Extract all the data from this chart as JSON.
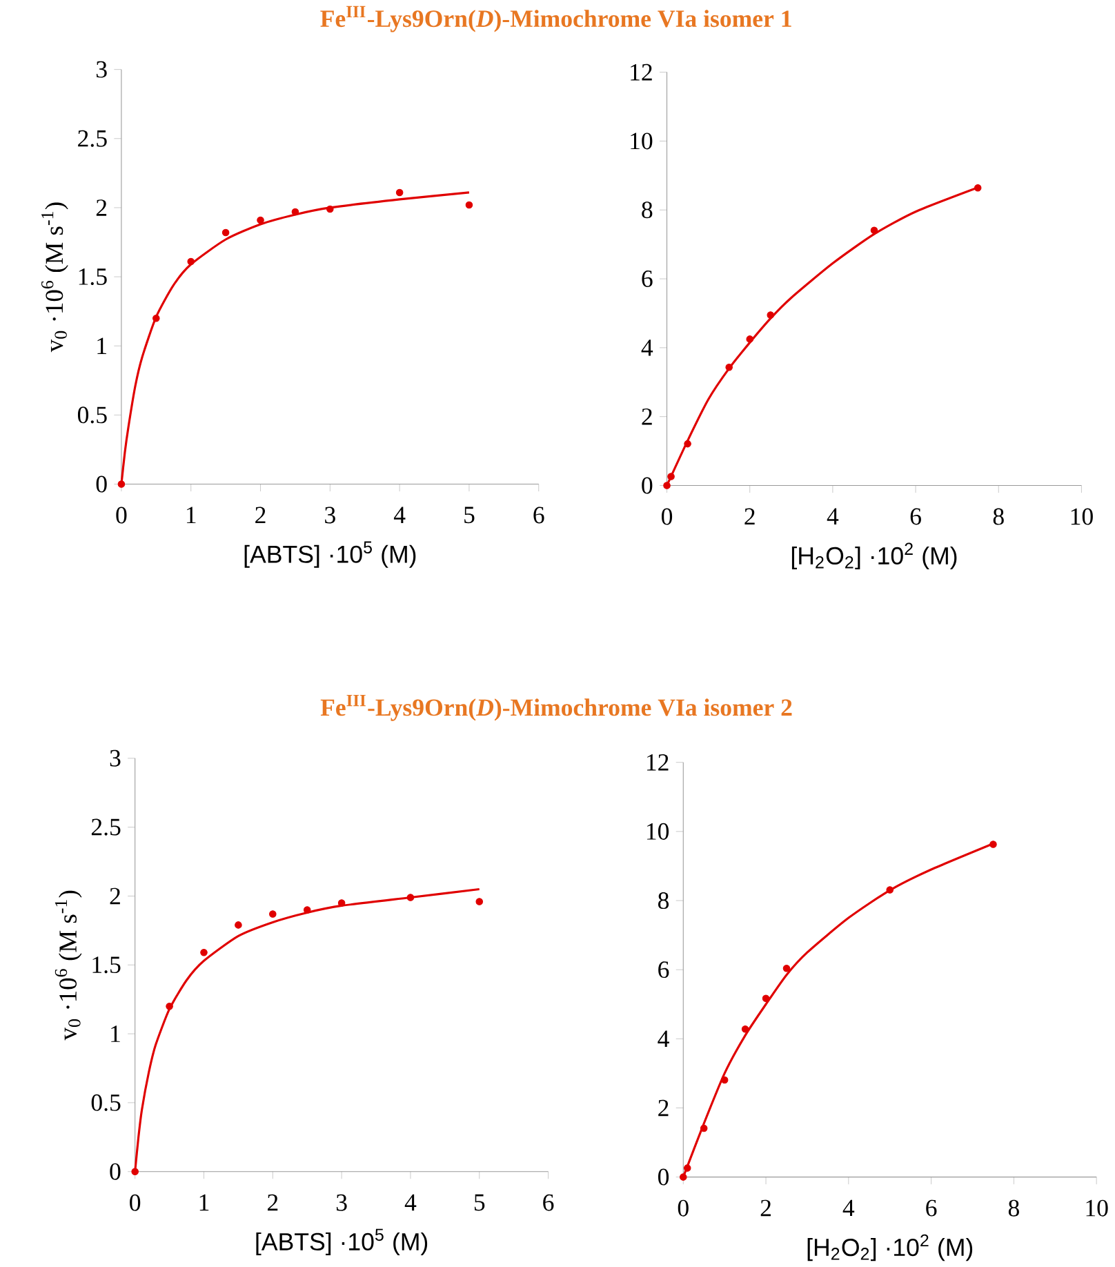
{
  "chart_data": [
    {
      "type": "scatter",
      "title": "Fe$^{III}$-Lys9Orn(*D*)-Mimochrome VIa isomer 1",
      "xlabel": "[ABTS] ·10$^{5}$ (M)",
      "ylabel": "v$_{0}$ ·10$^{6}$ (M s$^{-1}$)",
      "xlim": [
        0,
        6
      ],
      "ylim": [
        0,
        3
      ],
      "xticks": [
        0,
        1,
        2,
        3,
        4,
        5,
        6
      ],
      "yticks": [
        0,
        0.5,
        1,
        1.5,
        2,
        2.5,
        3
      ],
      "marker": "circle",
      "series": [
        {
          "color": "#e00000",
          "x": [
            0,
            0.5,
            1,
            1.5,
            2,
            2.5,
            3,
            4,
            5
          ],
          "values": [
            0,
            1.2,
            1.61,
            1.82,
            1.91,
            1.97,
            1.99,
            2.11,
            2.02
          ]
        },
        {
          "type": "line",
          "color": "#e00000",
          "marker": "none",
          "x": [
            0,
            0.05,
            0.1,
            0.2,
            0.3,
            0.5,
            0.75,
            1,
            1.5,
            2,
            2.5,
            3,
            4,
            5
          ],
          "values": [
            0,
            0.23,
            0.41,
            0.71,
            0.92,
            1.21,
            1.44,
            1.59,
            1.77,
            1.88,
            1.95,
            2.0,
            2.06,
            2.11
          ]
        }
      ]
    },
    {
      "type": "scatter",
      "xlabel": "[H$_{2}$O$_{2}$] ·10$^{2}$ (M)",
      "xlim": [
        0,
        10
      ],
      "ylim": [
        0,
        12
      ],
      "xticks": [
        0,
        2,
        4,
        6,
        8,
        10
      ],
      "yticks": [
        0,
        2,
        4,
        6,
        8,
        10,
        12
      ],
      "marker": "circle",
      "series": [
        {
          "color": "#e00000",
          "x": [
            0,
            0.1,
            0.5,
            1.5,
            2,
            2.5,
            5,
            7.5
          ],
          "values": [
            0,
            0.26,
            1.21,
            3.43,
            4.25,
            4.95,
            7.41,
            8.64
          ]
        },
        {
          "type": "line",
          "color": "#e00000",
          "marker": "none",
          "x": [
            0,
            0.5,
            1,
            1.5,
            2,
            2.5,
            3,
            4,
            5,
            6,
            7.5
          ],
          "values": [
            0,
            1.3,
            2.5,
            3.4,
            4.15,
            4.85,
            5.45,
            6.45,
            7.3,
            7.95,
            8.65
          ]
        }
      ]
    },
    {
      "type": "scatter",
      "title": "Fe$^{III}$-Lys9Orn(*D*)-Mimochrome VIa isomer 2",
      "xlabel": "[ABTS] ·10$^{5}$ (M)",
      "ylabel": "v$_{0}$ ·10$^{6}$ (M s$^{-1}$)",
      "xlim": [
        0,
        6
      ],
      "ylim": [
        0,
        3
      ],
      "xticks": [
        0,
        1,
        2,
        3,
        4,
        5,
        6
      ],
      "yticks": [
        0,
        0.5,
        1,
        1.5,
        2,
        2.5,
        3
      ],
      "marker": "circle",
      "series": [
        {
          "color": "#e00000",
          "x": [
            0,
            0.5,
            1,
            1.5,
            2,
            2.5,
            3,
            4,
            5
          ],
          "values": [
            0,
            1.2,
            1.59,
            1.79,
            1.87,
            1.9,
            1.95,
            1.99,
            1.96
          ]
        },
        {
          "type": "line",
          "color": "#e00000",
          "marker": "none",
          "x": [
            0,
            0.05,
            0.1,
            0.2,
            0.3,
            0.5,
            0.75,
            1,
            1.5,
            2,
            2.5,
            3,
            4,
            5
          ],
          "values": [
            0,
            0.25,
            0.45,
            0.72,
            0.92,
            1.18,
            1.39,
            1.53,
            1.71,
            1.81,
            1.88,
            1.93,
            1.99,
            2.05
          ]
        }
      ]
    },
    {
      "type": "scatter",
      "xlabel": "[H$_{2}$O$_{2}$] ·10$^{2}$ (M)",
      "xlim": [
        0,
        10
      ],
      "ylim": [
        0,
        12
      ],
      "xticks": [
        0,
        2,
        4,
        6,
        8,
        10
      ],
      "yticks": [
        0,
        2,
        4,
        6,
        8,
        10,
        12
      ],
      "marker": "circle",
      "series": [
        {
          "color": "#e00000",
          "x": [
            0,
            0.1,
            0.5,
            1,
            1.5,
            2,
            2.5,
            5,
            7.5
          ],
          "values": [
            0,
            0.26,
            1.41,
            2.81,
            4.28,
            5.17,
            6.04,
            8.31,
            9.63
          ]
        },
        {
          "type": "line",
          "color": "#e00000",
          "marker": "none",
          "x": [
            0,
            0.5,
            1,
            1.5,
            2,
            2.5,
            3,
            4,
            5,
            6,
            7.5
          ],
          "values": [
            0,
            1.55,
            3.0,
            4.1,
            5.0,
            5.85,
            6.5,
            7.5,
            8.3,
            8.9,
            9.65
          ]
        }
      ]
    }
  ]
}
